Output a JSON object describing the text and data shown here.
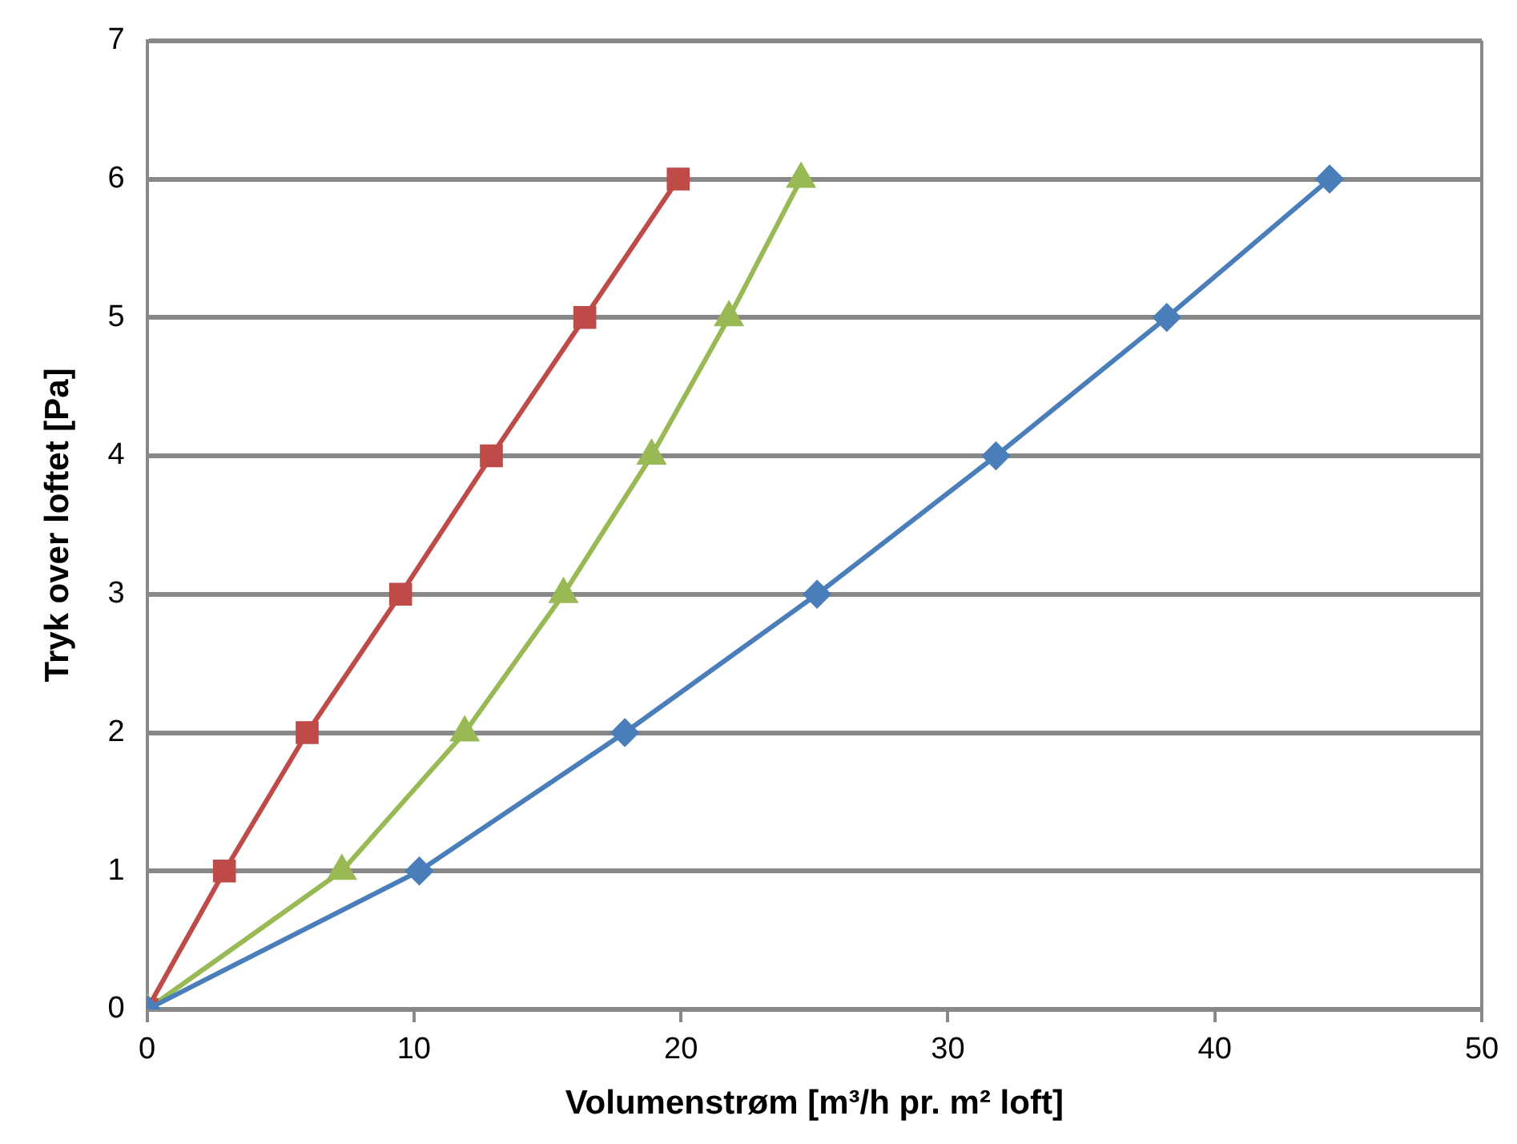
{
  "chart_data": {
    "type": "line",
    "xlabel": "Volumenstrøm [m³/h pr. m² loft]",
    "ylabel": "Tryk over loftet [Pa]",
    "xlim": [
      0,
      50
    ],
    "xticks": [
      0,
      10,
      20,
      30,
      40,
      50
    ],
    "ylim": [
      0,
      7
    ],
    "yticks": [
      0,
      1,
      2,
      3,
      4,
      5,
      6,
      7
    ],
    "grid": "y",
    "legend": false,
    "series": [
      {
        "color": "#4a7ebb",
        "marker": "diamond",
        "x": [
          0,
          10.2,
          17.9,
          25.1,
          31.8,
          38.2,
          44.3
        ],
        "values": [
          0,
          1,
          2,
          3,
          4,
          5,
          6
        ]
      },
      {
        "color": "#be4b48",
        "marker": "square",
        "x": [
          0,
          2.9,
          6.0,
          9.5,
          12.9,
          16.4,
          19.9
        ],
        "values": [
          0,
          1,
          2,
          3,
          4,
          5,
          6
        ]
      },
      {
        "color": "#98b954",
        "marker": "triangle",
        "x": [
          0,
          7.3,
          11.9,
          15.6,
          18.9,
          21.8,
          24.5
        ],
        "values": [
          0,
          1,
          2,
          3,
          4,
          5,
          6
        ]
      }
    ]
  }
}
